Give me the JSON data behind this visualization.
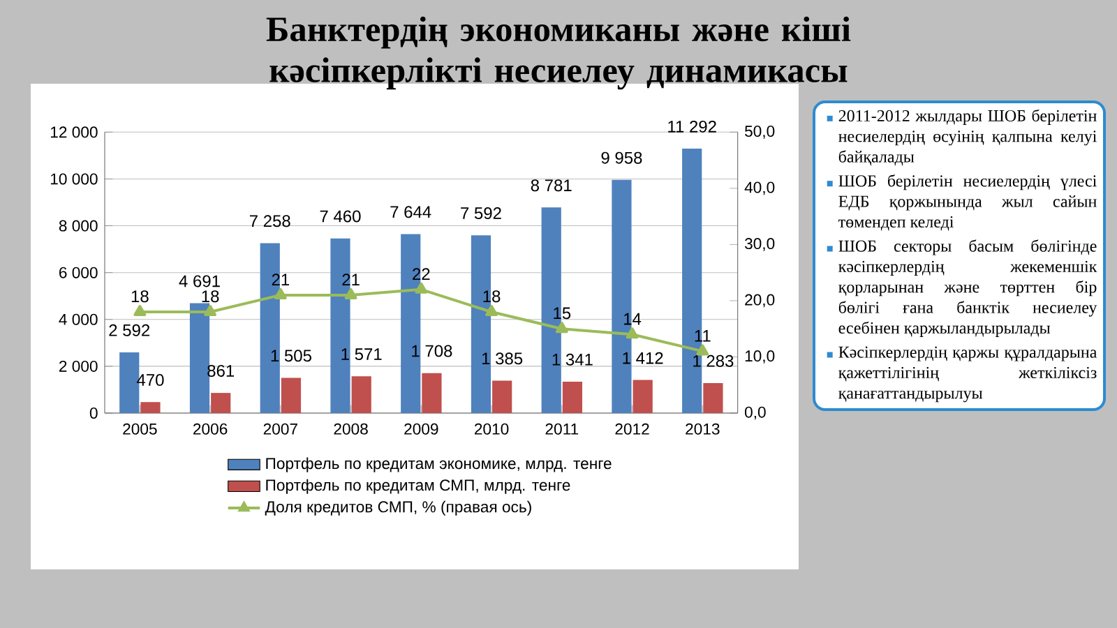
{
  "chart_data": {
    "type": "bar",
    "title": "Банктердің экономиканы және кіші кәсіпкерлікті несиелеу динамикасы",
    "categories": [
      "2005",
      "2006",
      "2007",
      "2008",
      "2009",
      "2010",
      "2011",
      "2012",
      "2013"
    ],
    "series": [
      {
        "name": "Портфель по кредитам экономике, млрд. тенге",
        "color": "#4f81bd",
        "values": [
          2592,
          4691,
          7258,
          7460,
          7644,
          7592,
          8781,
          9958,
          11292
        ],
        "value_labels": [
          "2 592",
          "4 691",
          "7 258",
          "7 460",
          "7 644",
          "7 592",
          "8 781",
          "9 958",
          "11 292"
        ]
      },
      {
        "name": "Портфель по кредитам СМП, млрд. тенге",
        "color": "#c0504d",
        "values": [
          470,
          861,
          1505,
          1571,
          1708,
          1385,
          1341,
          1412,
          1283
        ],
        "value_labels": [
          "470",
          "861",
          "1 505",
          "1 571",
          "1 708",
          "1 385",
          "1 341",
          "1 412",
          "1 283"
        ]
      },
      {
        "name": "Доля кредитов СМП, % (правая ось)",
        "type": "line",
        "axis": "y2",
        "marker": "triangle",
        "line_style": "solid",
        "color": "#9bbb59",
        "values": [
          18,
          18,
          21,
          21,
          22,
          18,
          15,
          14,
          11
        ],
        "value_labels": [
          "18",
          "18",
          "21",
          "21",
          "22",
          "18",
          "15",
          "14",
          "11"
        ]
      }
    ],
    "ylim": [
      0,
      12000
    ],
    "yticks": [
      0,
      {
        "value": 2000,
        "label": "2 000"
      },
      {
        "value": 4000,
        "label": "4 000"
      },
      {
        "value": 6000,
        "label": "6 000"
      },
      {
        "value": 8000,
        "label": "8 000"
      },
      {
        "value": 10000,
        "label": "10 000"
      },
      {
        "value": 12000,
        "label": "12 000"
      }
    ],
    "y2lim": [
      0,
      50
    ],
    "y2ticks": [
      {
        "value": 0,
        "label": "0,0"
      },
      {
        "value": 10,
        "label": "10,0"
      },
      {
        "value": 20,
        "label": "20,0"
      },
      {
        "value": 30,
        "label": "30,0"
      },
      {
        "value": 40,
        "label": "40,0"
      },
      {
        "value": 50,
        "label": "50,0"
      }
    ],
    "grid": "y",
    "legend": "bottom",
    "annotations": [
      "2011-2012 жылдары ШОБ берілетін несиелердің өсуінің қалпына келуі байқалады",
      "ШОБ берілетін несиелердің үлесі ЕДБ қоржынында жыл сайын төмендеп келеді",
      "ШОБ секторы басым бөлігінде кәсіпкерлердің жекеменшік қорларынан және төрттен бір бөлігі ғана банктік несиелеу есебінен қаржыландырылады",
      "Кәсіпкерлердің қаржы құралдарына қажеттілігінің жеткіліксіз қанағаттандырылуы"
    ]
  }
}
